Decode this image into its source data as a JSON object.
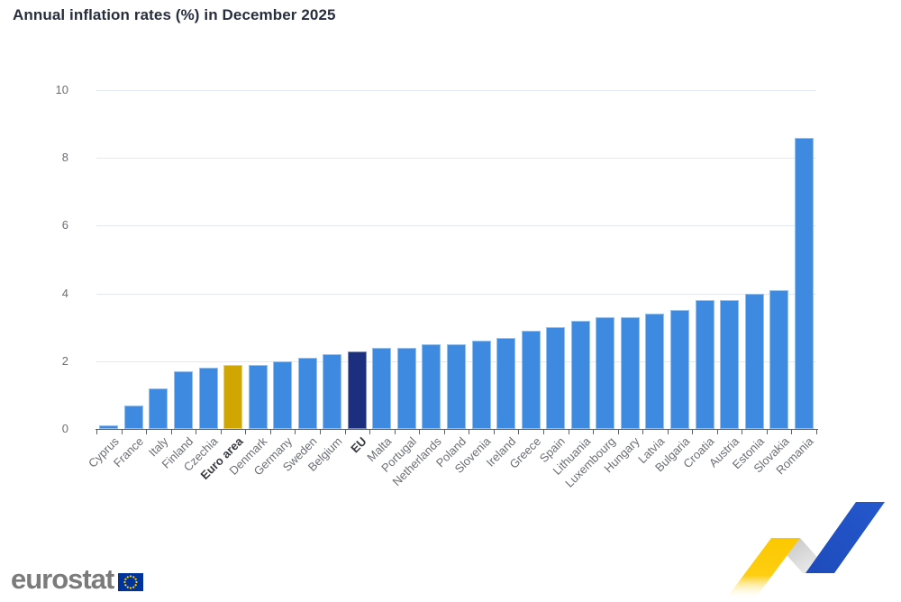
{
  "page": {
    "title": "Annual inflation rates (%) in December 2025"
  },
  "chart_data": {
    "type": "bar",
    "title": "Annual inflation rates (%) in December 2025",
    "categories": [
      "Cyprus",
      "France",
      "Italy",
      "Finland",
      "Czechia",
      "Euro area",
      "Denmark",
      "Germany",
      "Sweden",
      "Belgium",
      "EU",
      "Malta",
      "Portugal",
      "Netherlands",
      "Poland",
      "Slovenia",
      "Ireland",
      "Greece",
      "Spain",
      "Lithuania",
      "Luxembourg",
      "Hungary",
      "Latvia",
      "Bulgaria",
      "Croatia",
      "Austria",
      "Estonia",
      "Slovakia",
      "Romania"
    ],
    "values": [
      0.1,
      0.7,
      1.2,
      1.7,
      1.8,
      1.9,
      1.9,
      2.0,
      2.1,
      2.2,
      2.3,
      2.4,
      2.4,
      2.5,
      2.5,
      2.6,
      2.7,
      2.9,
      3.0,
      3.2,
      3.3,
      3.3,
      3.4,
      3.5,
      3.8,
      3.8,
      4.0,
      4.1,
      8.6
    ],
    "bold_categories": [
      "Euro area",
      "EU"
    ],
    "bar_colors": {
      "default": "#3e8ae0",
      "Euro area": "#cfa602",
      "EU": "#1b2f7e"
    },
    "xlabel": "",
    "ylabel": "",
    "ylim": [
      0,
      10
    ],
    "yticks": [
      0,
      2,
      4,
      6,
      8,
      10
    ],
    "grid": "horizontal",
    "legend": "none"
  },
  "footer": {
    "logo_text": "eurostat",
    "flag_icon": "eu-flag-icon",
    "colors": {
      "flag_blue": "#003399",
      "flag_stars": "#ffcc00",
      "logo_gray": "#7b7b7b"
    }
  },
  "decoration": {
    "zigzag_icon": "trend-zigzag-icon",
    "colors": {
      "yellow": "#fcc800",
      "gray": "#c9c9c9",
      "blue": "#2254c5"
    }
  }
}
